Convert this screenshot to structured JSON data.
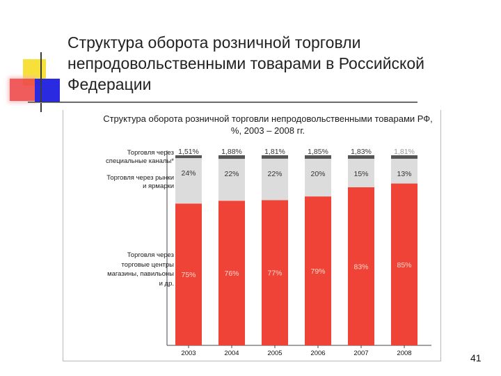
{
  "slide": {
    "title": "Структура оборота розничной торговли непродовольственными товарами в Российской Федерации",
    "page_number": "41"
  },
  "colors": {
    "other": "#555555",
    "markets": "#dcdcdc",
    "centers": "#ee4336",
    "label_dark": "#333333",
    "label_light": "#ffd9cc"
  },
  "chart_data": {
    "type": "bar",
    "stacked": true,
    "title": "Структура оборота розничной торговли непродовольственными товарами РФ, %, 2003 – 2008 гг.",
    "categories": [
      "2003",
      "2004",
      "2005",
      "2006",
      "2007",
      "2008"
    ],
    "ylim": [
      0,
      100
    ],
    "series": [
      {
        "name": "Торговля через торговые центры магазины, павильоны и др.",
        "values": [
          75,
          76,
          77,
          79,
          83,
          85
        ],
        "labels": [
          "75%",
          "76%",
          "77%",
          "79%",
          "83%",
          "85%"
        ]
      },
      {
        "name": "Торговля через рынки и ярмарки",
        "values": [
          24,
          22,
          22,
          20,
          15,
          13
        ],
        "labels": [
          "24%",
          "22%",
          "22%",
          "20%",
          "15%",
          "13%"
        ]
      },
      {
        "name": "Торговля через специальные каналы*",
        "values": [
          1.51,
          1.88,
          1.81,
          1.85,
          1.83,
          1.81
        ],
        "labels": [
          "1,51%",
          "1,88%",
          "1,81%",
          "1,85%",
          "1,83%",
          "1,81%"
        ]
      }
    ]
  }
}
